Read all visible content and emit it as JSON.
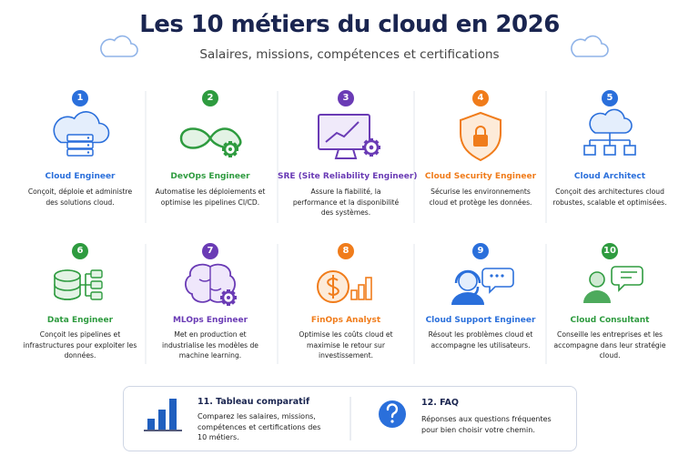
{
  "header": {
    "title": "Les 10 métiers du cloud en 2026",
    "subtitle": "Salaires, missions, compétences et certifications"
  },
  "cards": [
    {
      "number": "1",
      "title": "Cloud Engineer",
      "description": "Conçoit, déploie et administre des solutions cloud.",
      "color": "#2a6fdb"
    },
    {
      "number": "2",
      "title": "DevOps Engineer",
      "description": "Automatise les déploiements et optimise les pipelines CI/CD.",
      "color": "#2e9b3f"
    },
    {
      "number": "3",
      "title": "SRE (Site Reliability Engineer)",
      "description": "Assure la fiabilité, la performance et la disponibilité des systèmes.",
      "color": "#6a3bb5"
    },
    {
      "number": "4",
      "title": "Cloud Security Engineer",
      "description": "Sécurise les environnements cloud et protège les données.",
      "color": "#f07c1b"
    },
    {
      "number": "5",
      "title": "Cloud Architect",
      "description": "Conçoit des architectures cloud robustes, scalable et optimisées.",
      "color": "#2a6fdb"
    },
    {
      "number": "6",
      "title": "Data Engineer",
      "description": "Conçoit les pipelines et infrastructures pour exploiter les données.",
      "color": "#2e9b3f"
    },
    {
      "number": "7",
      "title": "MLOps Engineer",
      "description": "Met en production et industrialise les modèles de machine learning.",
      "color": "#6a3bb5"
    },
    {
      "number": "8",
      "title": "FinOps Analyst",
      "description": "Optimise les coûts cloud et maximise le retour sur investissement.",
      "color": "#f07c1b"
    },
    {
      "number": "9",
      "title": "Cloud Support Engineer",
      "description": "Résout les problèmes cloud et accompagne les utilisateurs.",
      "color": "#2a6fdb"
    },
    {
      "number": "10",
      "title": "Cloud Consultant",
      "description": "Conseille les entreprises et les accompagne dans leur stratégie cloud.",
      "color": "#2e9b3f"
    }
  ],
  "footer": [
    {
      "title": "11. Tableau comparatif",
      "description": "Comparez les salaires, missions, compétences et certifications des 10 métiers."
    },
    {
      "title": "12. FAQ",
      "description": "Réponses aux questions fréquentes pour bien choisir votre chemin."
    }
  ]
}
